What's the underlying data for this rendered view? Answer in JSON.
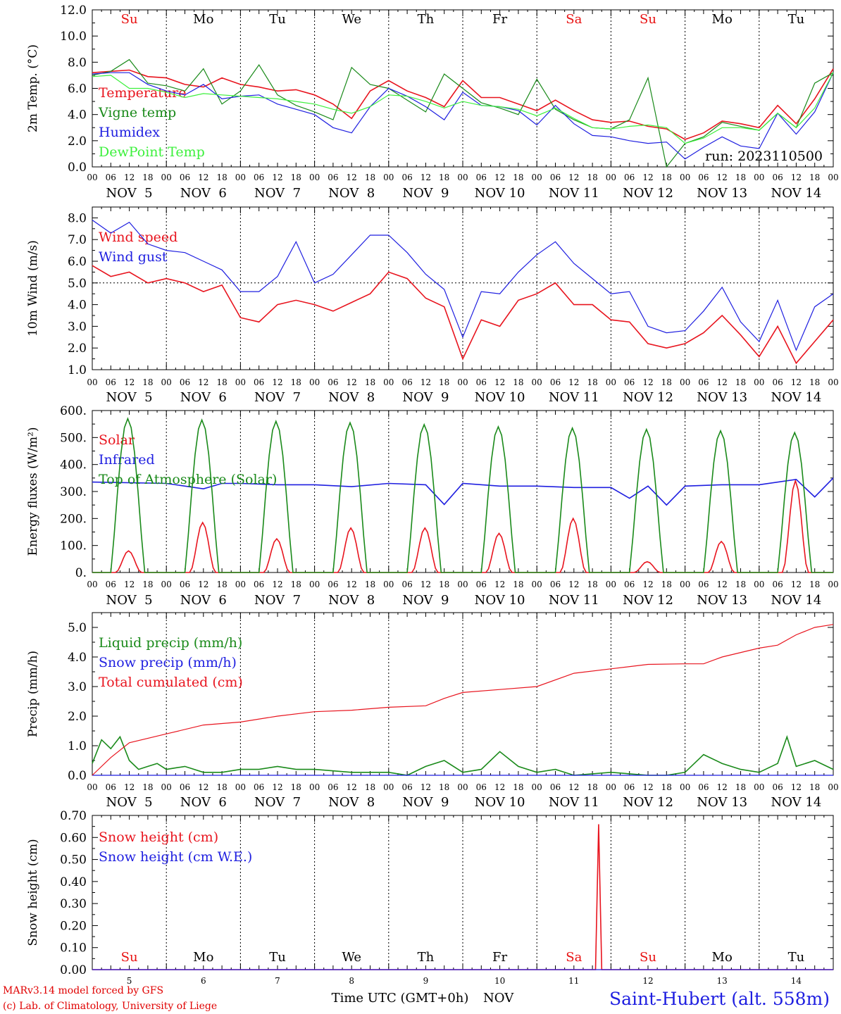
{
  "colors": {
    "red": "#e8141e",
    "green": "#1a8a1a",
    "blue": "#1f1fe0",
    "lightgreen": "#3cf03c",
    "weekend": "#e81010",
    "weekday": "#000000"
  },
  "days": [
    "Su",
    "Mo",
    "Tu",
    "We",
    "Th",
    "Fr",
    "Sa",
    "Su",
    "Mo",
    "Tu"
  ],
  "weekend_flags": [
    true,
    false,
    false,
    false,
    false,
    false,
    true,
    true,
    false,
    false
  ],
  "dates": [
    "NOV  5",
    "NOV  6",
    "NOV  7",
    "NOV  8",
    "NOV  9",
    "NOV 10",
    "NOV 11",
    "NOV 12",
    "NOV 13",
    "NOV 14"
  ],
  "day_numbers": [
    "5",
    "6",
    "7",
    "8",
    "9",
    "10",
    "11",
    "12",
    "13",
    "14"
  ],
  "hour_labels": [
    "00",
    "06",
    "12",
    "18"
  ],
  "final_hour_label": "00",
  "footer": {
    "model": "MARv3.14 model forced by GFS",
    "credit": "(c) Lab. of Climatology, University of Liege",
    "xlabel": "Time UTC (GMT+0h)",
    "month": "NOV",
    "station": "Saint-Hubert (alt. 558m)"
  },
  "chart_data": [
    {
      "id": "temp",
      "type": "line",
      "ylabel": "2m Temp. (°C)",
      "ylim": [
        0,
        12
      ],
      "yticks": [
        "0.0",
        "2.0",
        "4.0",
        "6.0",
        "8.0",
        "10.0",
        "12.0"
      ],
      "annotation": "run: 2023110500",
      "x_unit": "hours since NOV 5 00 UTC",
      "series": [
        {
          "name": "Temperature",
          "color": "#e8141e",
          "x": [
            0,
            6,
            12,
            18,
            24,
            30,
            36,
            42,
            48,
            54,
            60,
            66,
            72,
            78,
            84,
            90,
            96,
            102,
            108,
            114,
            120,
            126,
            132,
            138,
            144,
            150,
            156,
            162,
            168,
            174,
            180,
            186,
            192,
            198,
            204,
            210,
            216,
            222,
            228,
            234,
            240
          ],
          "y": [
            7.2,
            7.3,
            7.4,
            6.9,
            6.8,
            6.3,
            6.1,
            6.8,
            6.3,
            6.1,
            5.8,
            5.9,
            5.5,
            4.8,
            3.7,
            5.8,
            6.6,
            5.8,
            5.3,
            4.6,
            6.6,
            5.3,
            5.3,
            4.8,
            4.3,
            5.1,
            4.3,
            3.6,
            3.4,
            3.5,
            3.1,
            2.9,
            2.1,
            2.6,
            3.5,
            3.3,
            3.0,
            4.7,
            3.3,
            5.2,
            7.5
          ]
        },
        {
          "name": "Vigne temp",
          "color": "#1a8a1a",
          "x": [
            0,
            6,
            12,
            18,
            24,
            30,
            36,
            42,
            48,
            54,
            60,
            66,
            72,
            78,
            84,
            90,
            96,
            102,
            108,
            114,
            120,
            126,
            132,
            138,
            144,
            150,
            156,
            162,
            168,
            174,
            180,
            186,
            192,
            198,
            204,
            210,
            216,
            222,
            228,
            234,
            240
          ],
          "y": [
            7.0,
            7.3,
            8.2,
            6.4,
            6.2,
            5.8,
            7.5,
            4.8,
            5.8,
            7.8,
            5.5,
            4.7,
            4.2,
            3.6,
            7.6,
            6.3,
            6.0,
            5.1,
            4.2,
            7.1,
            6.0,
            4.9,
            4.5,
            4.0,
            6.7,
            4.4,
            3.6,
            3.0,
            2.9,
            3.6,
            6.8,
            0.0,
            1.8,
            2.3,
            3.4,
            3.1,
            2.8,
            4.1,
            3.0,
            6.4,
            7.2
          ]
        },
        {
          "name": "Humidex",
          "color": "#1f1fe0",
          "x": [
            0,
            6,
            12,
            18,
            24,
            30,
            36,
            42,
            48,
            54,
            60,
            66,
            72,
            78,
            84,
            90,
            96,
            102,
            108,
            114,
            120,
            126,
            132,
            138,
            144,
            150,
            156,
            162,
            168,
            174,
            180,
            186,
            192,
            198,
            204,
            210,
            216,
            222,
            228,
            234,
            240
          ],
          "y": [
            7.1,
            7.2,
            7.2,
            6.3,
            5.8,
            5.5,
            6.3,
            5.2,
            5.4,
            5.5,
            4.8,
            4.4,
            4.0,
            3.0,
            2.6,
            4.6,
            6.0,
            5.4,
            4.6,
            3.6,
            5.7,
            4.7,
            4.6,
            4.3,
            3.2,
            4.7,
            3.3,
            2.4,
            2.3,
            2.0,
            1.8,
            1.9,
            0.6,
            1.5,
            2.3,
            1.6,
            1.4,
            4.1,
            2.5,
            4.2,
            7.2
          ]
        },
        {
          "name": "DewPoint Temp",
          "color": "#3cf03c",
          "x": [
            0,
            6,
            12,
            18,
            24,
            30,
            36,
            42,
            48,
            54,
            60,
            66,
            72,
            78,
            84,
            90,
            96,
            102,
            108,
            114,
            120,
            126,
            132,
            138,
            144,
            150,
            156,
            162,
            168,
            174,
            180,
            186,
            192,
            198,
            204,
            210,
            216,
            222,
            228,
            234,
            240
          ],
          "y": [
            6.9,
            7.0,
            6.0,
            6.0,
            5.7,
            5.3,
            5.6,
            5.5,
            5.4,
            5.3,
            5.2,
            5.0,
            4.8,
            4.4,
            4.1,
            4.6,
            5.5,
            5.4,
            5.0,
            4.5,
            5.0,
            4.7,
            4.6,
            4.4,
            3.9,
            4.5,
            3.7,
            3.0,
            2.9,
            3.1,
            3.2,
            3.0,
            1.8,
            2.2,
            3.0,
            3.0,
            2.8,
            4.1,
            3.0,
            4.5,
            7.2
          ]
        }
      ]
    },
    {
      "id": "wind",
      "type": "line",
      "ylabel": "10m Wind (m/s)",
      "ylim": [
        1,
        8.5
      ],
      "yticks": [
        "1.0",
        "2.0",
        "3.0",
        "4.0",
        "5.0",
        "6.0",
        "7.0",
        "8.0"
      ],
      "hline": 5.0,
      "series": [
        {
          "name": "Wind speed",
          "color": "#e8141e",
          "x": [
            0,
            6,
            12,
            18,
            24,
            30,
            36,
            42,
            48,
            54,
            60,
            66,
            72,
            78,
            84,
            90,
            96,
            102,
            108,
            114,
            120,
            126,
            132,
            138,
            144,
            150,
            156,
            162,
            168,
            174,
            180,
            186,
            192,
            198,
            204,
            210,
            216,
            222,
            228,
            234,
            240
          ],
          "y": [
            5.8,
            5.3,
            5.5,
            5.0,
            5.2,
            5.0,
            4.6,
            4.9,
            3.4,
            3.2,
            4.0,
            4.2,
            4.0,
            3.7,
            4.1,
            4.5,
            5.5,
            5.2,
            4.3,
            3.9,
            1.5,
            3.3,
            3.0,
            4.2,
            4.5,
            5.0,
            4.0,
            4.0,
            3.3,
            3.2,
            2.2,
            2.0,
            2.2,
            2.7,
            3.5,
            2.6,
            1.6,
            3.0,
            1.3,
            2.3,
            3.3
          ]
        },
        {
          "name": "Wind gust",
          "color": "#1f1fe0",
          "x": [
            0,
            6,
            12,
            18,
            24,
            30,
            36,
            42,
            48,
            54,
            60,
            66,
            72,
            78,
            84,
            90,
            96,
            102,
            108,
            114,
            120,
            126,
            132,
            138,
            144,
            150,
            156,
            162,
            168,
            174,
            180,
            186,
            192,
            198,
            204,
            210,
            216,
            222,
            228,
            234,
            240
          ],
          "y": [
            7.9,
            7.3,
            7.8,
            6.8,
            6.5,
            6.4,
            6.0,
            5.6,
            4.6,
            4.6,
            5.3,
            6.9,
            5.0,
            5.4,
            6.3,
            7.2,
            7.2,
            6.4,
            5.4,
            4.7,
            2.5,
            4.6,
            4.5,
            5.5,
            6.3,
            6.9,
            5.9,
            5.2,
            4.5,
            4.6,
            3.0,
            2.7,
            2.8,
            3.7,
            4.8,
            3.2,
            2.3,
            4.2,
            1.9,
            3.9,
            4.5
          ]
        }
      ]
    },
    {
      "id": "energy",
      "type": "line",
      "ylabel": "Energy fluxes (W/m²)",
      "ylim": [
        0,
        600
      ],
      "yticks": [
        "0.",
        "100.",
        "200.",
        "300.",
        "400.",
        "500.",
        "600."
      ],
      "series": [
        {
          "name": "Solar",
          "color": "#e8141e",
          "day_peaks": [
            80,
            185,
            125,
            165,
            165,
            145,
            200,
            40,
            115,
            340
          ]
        },
        {
          "name": "Infrared",
          "color": "#1f1fe0",
          "x": [
            0,
            24,
            36,
            42,
            48,
            60,
            72,
            84,
            96,
            108,
            114,
            120,
            132,
            144,
            156,
            168,
            174,
            180,
            186,
            192,
            204,
            216,
            228,
            234,
            240
          ],
          "y": [
            335,
            330,
            310,
            330,
            330,
            325,
            325,
            318,
            330,
            325,
            252,
            330,
            320,
            320,
            315,
            315,
            275,
            320,
            250,
            320,
            325,
            325,
            345,
            280,
            350
          ]
        },
        {
          "name": "Top of Atmosphere (Solar)",
          "color": "#1a8a1a",
          "day_peaks": [
            570,
            565,
            560,
            555,
            548,
            540,
            535,
            530,
            525,
            518
          ]
        }
      ]
    },
    {
      "id": "precip",
      "type": "line",
      "ylabel": "Precip (mm/h)",
      "ylim": [
        0,
        5.5
      ],
      "yticks": [
        "0.0",
        "1.0",
        "2.0",
        "3.0",
        "4.0",
        "5.0"
      ],
      "series": [
        {
          "name": "Liquid precip (mm/h)",
          "color": "#1a8a1a",
          "x": [
            0,
            3,
            6,
            9,
            12,
            15,
            18,
            21,
            24,
            30,
            36,
            42,
            48,
            54,
            60,
            66,
            72,
            84,
            96,
            102,
            108,
            114,
            120,
            126,
            132,
            138,
            144,
            150,
            156,
            168,
            180,
            186,
            192,
            198,
            204,
            210,
            216,
            222,
            225,
            228,
            234,
            240
          ],
          "y": [
            0.4,
            1.2,
            0.9,
            1.3,
            0.5,
            0.2,
            0.3,
            0.4,
            0.2,
            0.3,
            0.1,
            0.1,
            0.2,
            0.2,
            0.3,
            0.2,
            0.2,
            0.1,
            0.1,
            0.0,
            0.3,
            0.5,
            0.1,
            0.2,
            0.8,
            0.3,
            0.1,
            0.2,
            0.0,
            0.1,
            0.0,
            0.0,
            0.1,
            0.7,
            0.4,
            0.2,
            0.1,
            0.4,
            1.3,
            0.3,
            0.5,
            0.2
          ]
        },
        {
          "name": "Snow precip (mm/h)",
          "color": "#1f1fe0",
          "x": [
            0,
            240
          ],
          "y": [
            0.0,
            0.0
          ]
        },
        {
          "name": "Total cumulated (cm)",
          "color": "#e8141e",
          "x": [
            0,
            6,
            12,
            24,
            36,
            48,
            60,
            72,
            84,
            96,
            108,
            114,
            120,
            132,
            144,
            156,
            168,
            180,
            192,
            198,
            204,
            216,
            222,
            228,
            234,
            240
          ],
          "y": [
            0.0,
            0.6,
            1.1,
            1.4,
            1.7,
            1.8,
            2.0,
            2.15,
            2.2,
            2.3,
            2.35,
            2.6,
            2.8,
            2.9,
            3.0,
            3.45,
            3.6,
            3.75,
            3.77,
            3.77,
            4.0,
            4.3,
            4.4,
            4.75,
            5.0,
            5.1
          ]
        }
      ]
    },
    {
      "id": "snow",
      "type": "line",
      "ylabel": "Snow height (cm)",
      "ylim": [
        0,
        0.7
      ],
      "yticks": [
        "0.00",
        "0.10",
        "0.20",
        "0.30",
        "0.40",
        "0.50",
        "0.60",
        "0.70"
      ],
      "series": [
        {
          "name": "Snow height (cm)",
          "color": "#e8141e",
          "x": [
            0,
            163,
            164,
            165,
            240
          ],
          "y": [
            0.0,
            0.0,
            0.66,
            0.0,
            0.0
          ]
        },
        {
          "name": "Snow height (cm W.E.)",
          "color": "#1f1fe0",
          "x": [
            0,
            240
          ],
          "y": [
            0.0,
            0.0
          ]
        }
      ]
    }
  ]
}
